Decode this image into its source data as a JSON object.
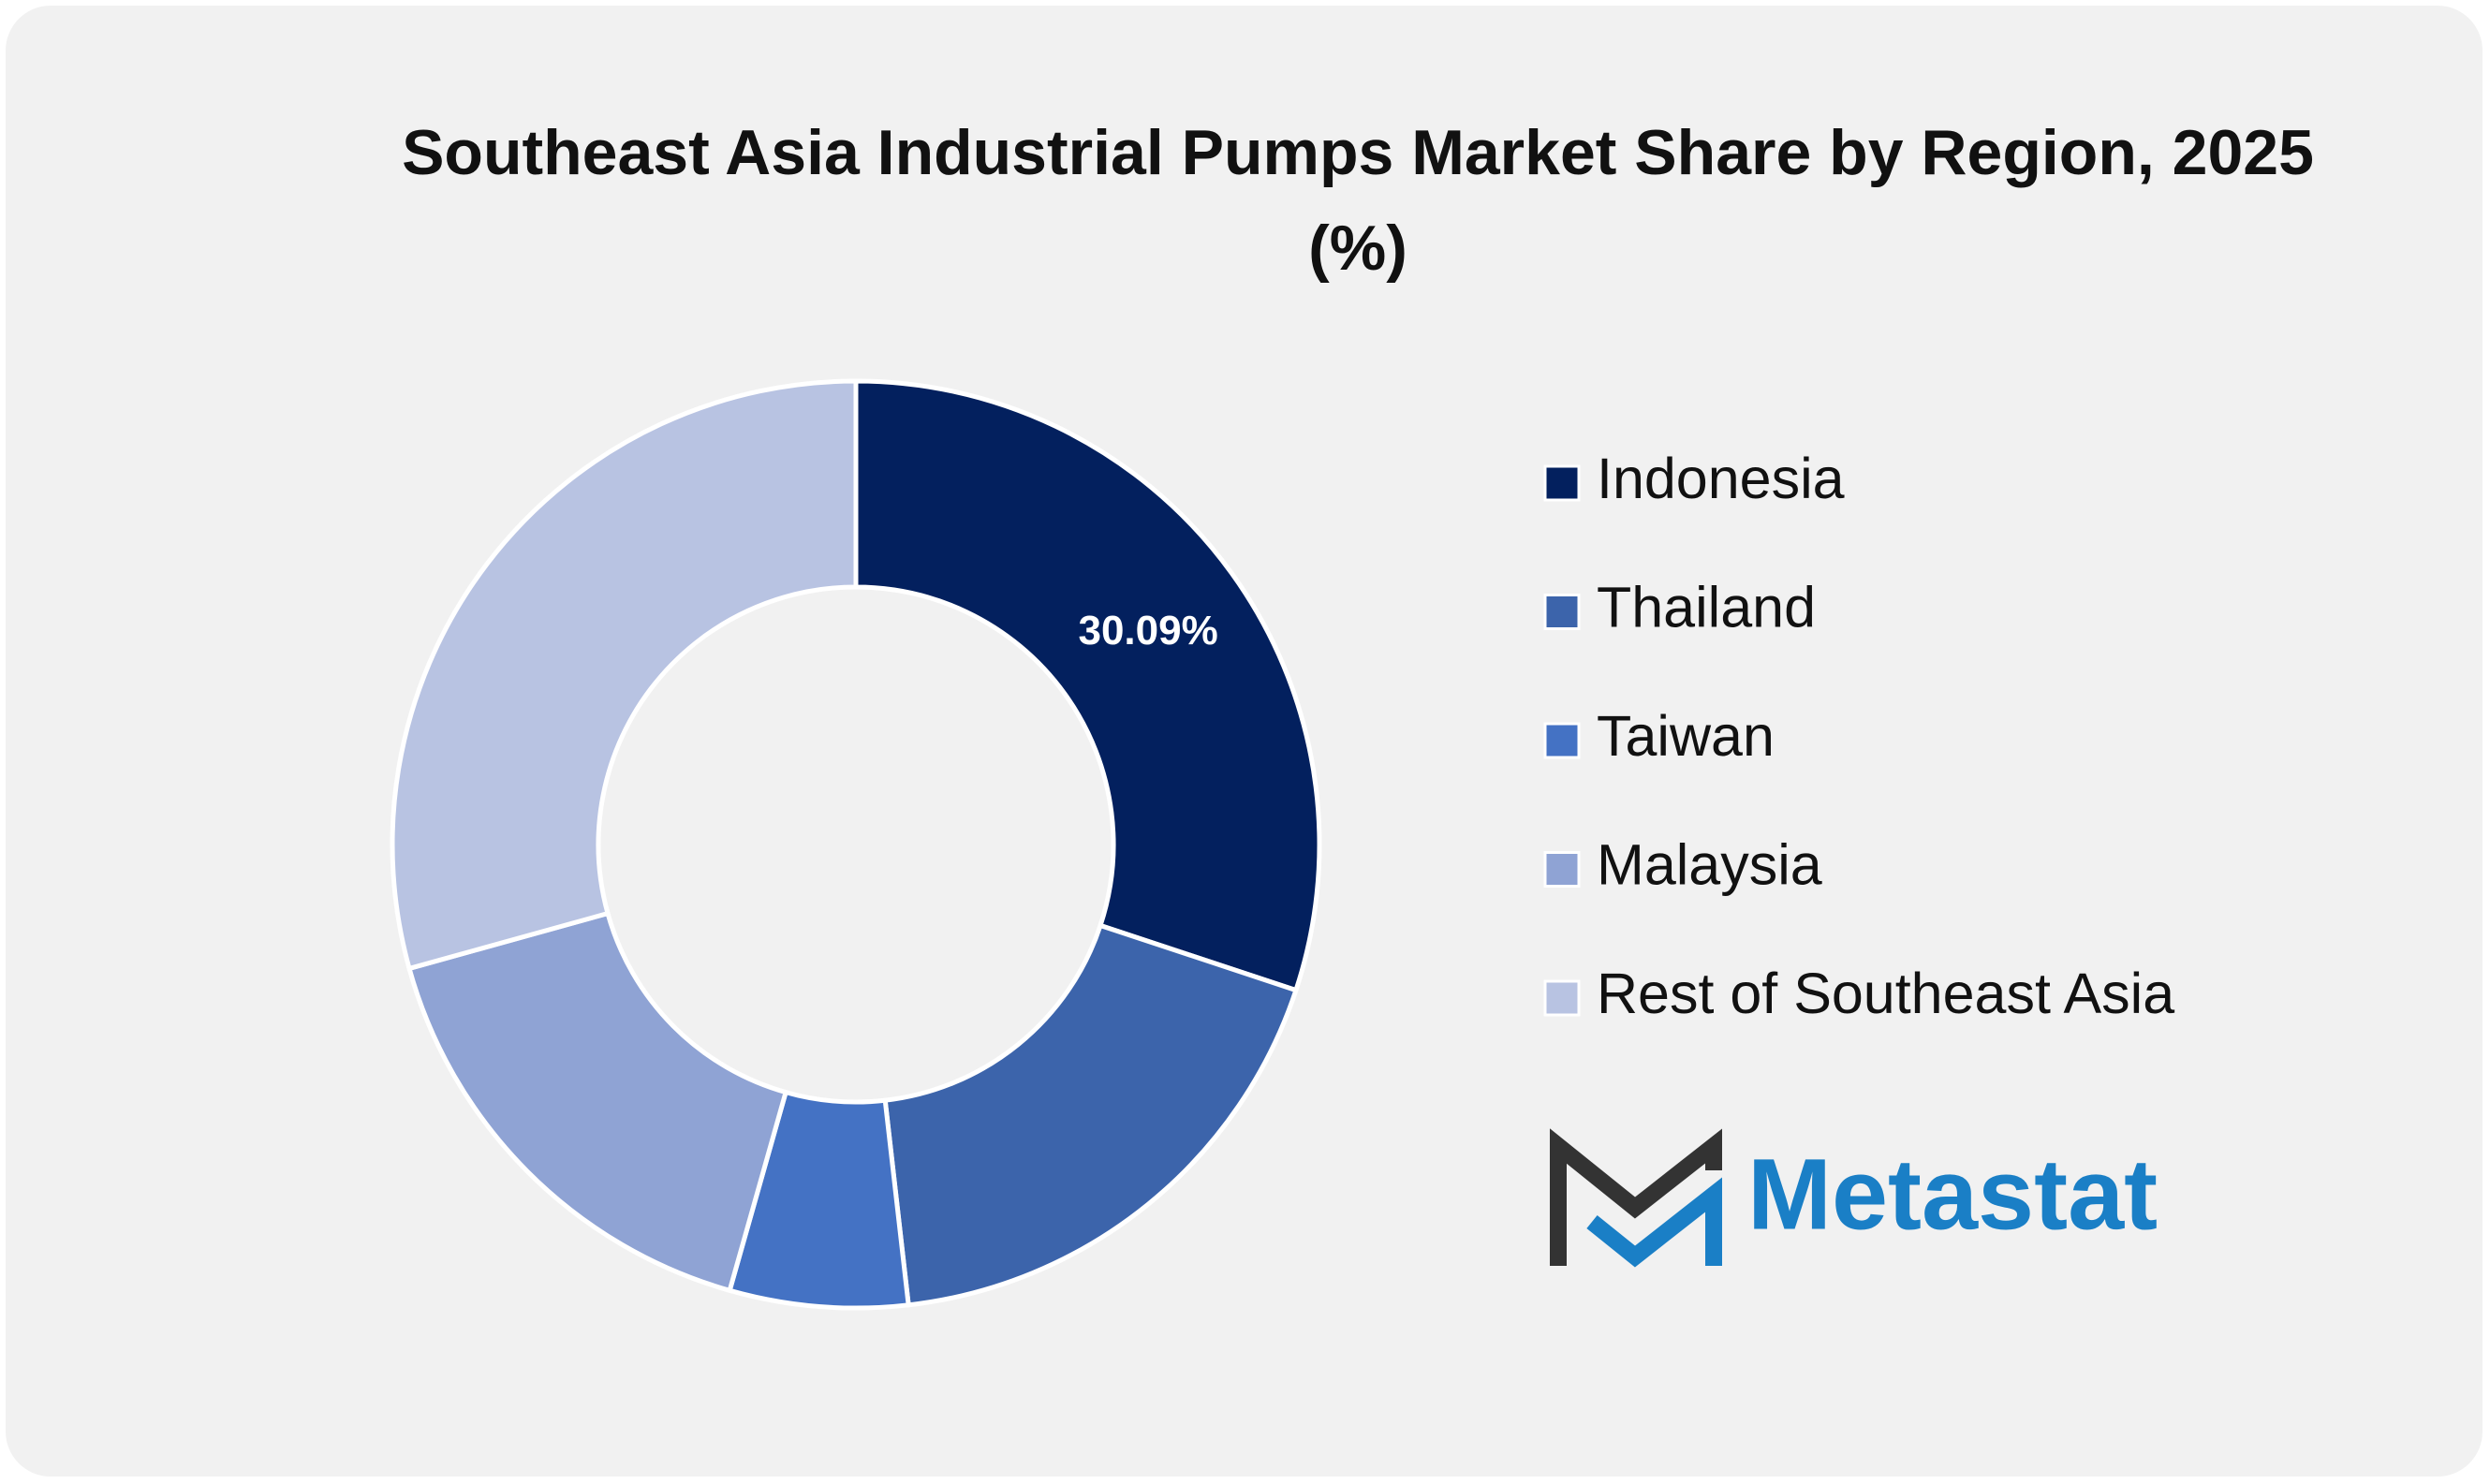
{
  "chart_data": {
    "type": "donut",
    "title": "Southeast Asia Industrial Pumps Market Share by Region, 2025 (%)",
    "categories": [
      "Indonesia",
      "Thailand",
      "Taiwan",
      "Malaysia",
      "Rest of Southeast Asia"
    ],
    "values": [
      30.09,
      18.1,
      6.2,
      16.3,
      29.31
    ],
    "value_labels": [
      "30.09%",
      null,
      null,
      null,
      null
    ],
    "colors": [
      "#03205e",
      "#3c64ab",
      "#4472c4",
      "#8fa3d4",
      "#b8c3e2"
    ],
    "legend": "right"
  },
  "logo": "Metastat"
}
